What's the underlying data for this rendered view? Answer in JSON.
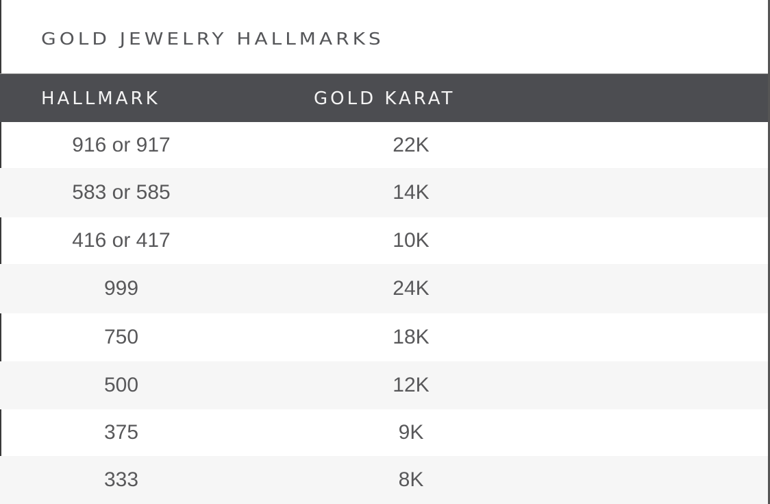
{
  "title": "GOLD JEWELRY HALLMARKS",
  "columns": [
    "HALLMARK",
    "GOLD KARAT"
  ],
  "rows": [
    {
      "hallmark": "916 or 917",
      "karat": "22K"
    },
    {
      "hallmark": "583 or 585",
      "karat": "14K"
    },
    {
      "hallmark": "416 or 417",
      "karat": "10K"
    },
    {
      "hallmark": "999",
      "karat": "24K"
    },
    {
      "hallmark": "750",
      "karat": "18K"
    },
    {
      "hallmark": "500",
      "karat": "12K"
    },
    {
      "hallmark": "375",
      "karat": "9K"
    },
    {
      "hallmark": "333",
      "karat": "8K"
    }
  ],
  "colors": {
    "header_bg": "#4c4d51",
    "header_text": "#f4f4f4",
    "text": "#58585a",
    "alt_row": "#f6f6f6"
  }
}
